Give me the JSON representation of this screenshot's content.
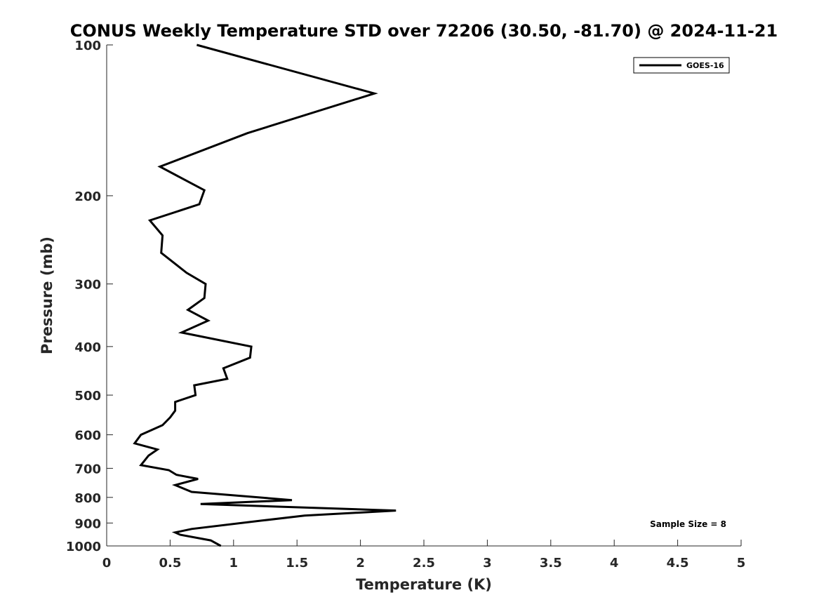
{
  "chart_data": {
    "type": "line",
    "title": "CONUS Weekly Temperature STD over 72206 (30.50, -81.70) @ 2024-11-21",
    "xlabel": "Temperature (K)",
    "ylabel": "Pressure (mb)",
    "xlim": [
      0,
      5
    ],
    "ylim": [
      1000,
      100
    ],
    "yscale": "log",
    "y_reversed": true,
    "x_ticks": [
      "0",
      "0.5",
      "1",
      "1.5",
      "2",
      "2.5",
      "3",
      "3.5",
      "4",
      "4.5",
      "5"
    ],
    "y_ticks": [
      "100",
      "200",
      "300",
      "400",
      "500",
      "600",
      "700",
      "800",
      "900",
      "1000"
    ],
    "grid": false,
    "legend_position": "top-right",
    "annotation": "Sample Size = 8",
    "series": [
      {
        "name": "GOES-16",
        "color": "#000000",
        "points": [
          [
            0.71,
            100
          ],
          [
            2.11,
            125
          ],
          [
            1.11,
            150
          ],
          [
            0.42,
            175
          ],
          [
            0.77,
            195
          ],
          [
            0.73,
            208
          ],
          [
            0.34,
            224
          ],
          [
            0.44,
            240
          ],
          [
            0.43,
            260
          ],
          [
            0.63,
            285
          ],
          [
            0.78,
            300
          ],
          [
            0.77,
            320
          ],
          [
            0.64,
            338
          ],
          [
            0.8,
            355
          ],
          [
            0.59,
            375
          ],
          [
            1.14,
            400
          ],
          [
            1.13,
            421
          ],
          [
            0.92,
            442
          ],
          [
            0.95,
            464
          ],
          [
            0.69,
            478
          ],
          [
            0.7,
            500
          ],
          [
            0.54,
            516
          ],
          [
            0.54,
            537
          ],
          [
            0.5,
            554
          ],
          [
            0.44,
            574
          ],
          [
            0.27,
            600
          ],
          [
            0.22,
            624
          ],
          [
            0.4,
            642
          ],
          [
            0.33,
            660
          ],
          [
            0.27,
            690
          ],
          [
            0.49,
            706
          ],
          [
            0.55,
            721
          ],
          [
            0.72,
            735
          ],
          [
            0.54,
            756
          ],
          [
            0.67,
            780
          ],
          [
            1.46,
            810
          ],
          [
            0.74,
            825
          ],
          [
            2.28,
            850
          ],
          [
            1.56,
            870
          ],
          [
            1.22,
            890
          ],
          [
            0.67,
            925
          ],
          [
            0.54,
            940
          ],
          [
            0.58,
            950
          ],
          [
            0.82,
            975
          ],
          [
            0.9,
            1000
          ]
        ]
      }
    ]
  }
}
